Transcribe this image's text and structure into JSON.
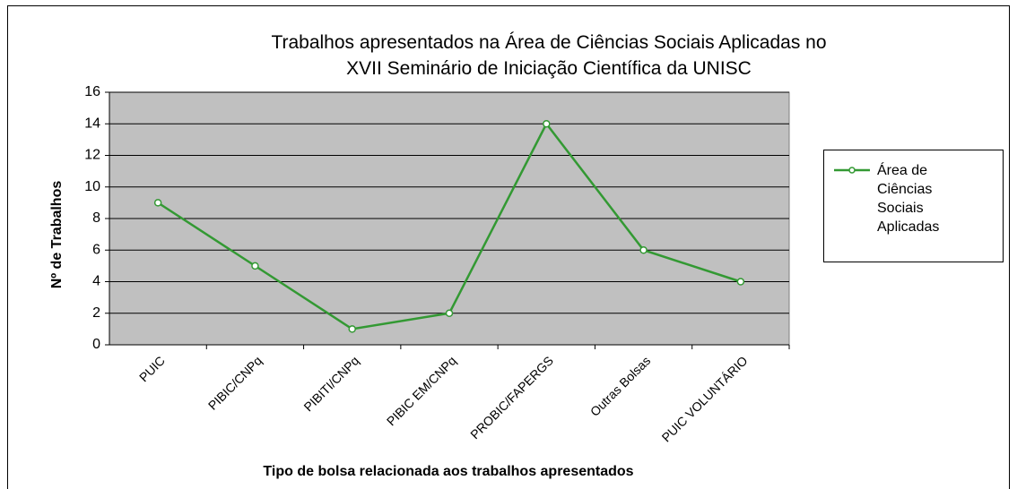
{
  "chart_data": {
    "type": "line",
    "title": "Trabalhos apresentados na Área de Ciências Sociais Aplicadas no\nXVII Seminário de Iniciação Científica da UNISC",
    "x_label": "Tipo de bolsa relacionada aos trabalhos apresentados",
    "y_label": "Nº de  Trabalhos",
    "categories": [
      "PUIC",
      "PIBIC/CNPq",
      "PIBITI/CNPq",
      "PIBIC EM/CNPq",
      "PROBIC/FAPERGS",
      "Outras Bolsas",
      "PUIC VOLUNTÁRIO"
    ],
    "series": [
      {
        "name": "Área de Ciências Sociais Aplicadas",
        "color": "#339933",
        "values": [
          9,
          5,
          1,
          2,
          14,
          6,
          4
        ]
      }
    ],
    "ylim": [
      0,
      16
    ],
    "yticks": [
      0,
      2,
      4,
      6,
      8,
      10,
      12,
      14,
      16
    ],
    "grid": true,
    "legend": "right"
  }
}
